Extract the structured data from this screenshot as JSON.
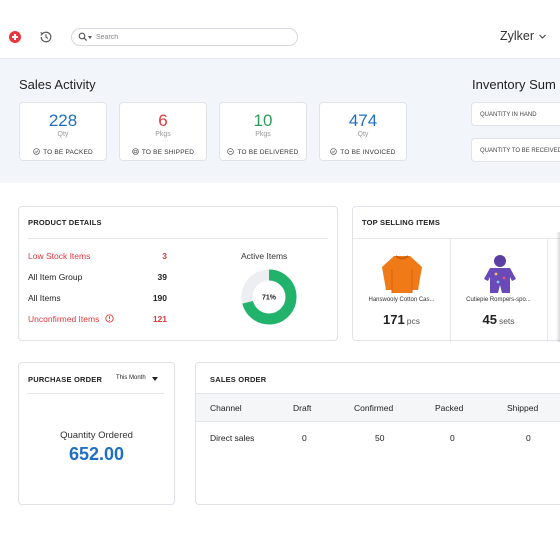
{
  "topbar": {
    "search_placeholder": "Search",
    "org_name": "Zylker"
  },
  "sales_activity": {
    "title": "Sales Activity",
    "cards": [
      {
        "value": "228",
        "unit": "Qty",
        "label": "TO BE PACKED",
        "color": "#1f6fc5",
        "icon": "check-circle-icon"
      },
      {
        "value": "6",
        "unit": "Pkgs",
        "label": "TO BE SHIPPED",
        "color": "#e0393e",
        "icon": "truck-circle-icon"
      },
      {
        "value": "10",
        "unit": "Pkgs",
        "label": "TO BE DELIVERED",
        "color": "#2a9d5c",
        "icon": "minus-circle-icon"
      },
      {
        "value": "474",
        "unit": "Qty",
        "label": "TO BE INVOICED",
        "color": "#1f6fc5",
        "icon": "check-circle-icon"
      }
    ]
  },
  "inventory_summary": {
    "title": "Inventory Sum",
    "rows": [
      "QUANTITY IN HAND",
      "QUANTITY TO BE RECEIVED"
    ]
  },
  "product_details": {
    "title": "PRODUCT DETAILS",
    "rows": [
      {
        "label": "Low Stock Items",
        "value": "3",
        "alert": true
      },
      {
        "label": "All Item Group",
        "value": "39",
        "alert": false
      },
      {
        "label": "All Items",
        "value": "190",
        "alert": false
      },
      {
        "label": "Unconfirmed Items",
        "value": "121",
        "alert": true
      }
    ],
    "active_items": {
      "title": "Active Items",
      "percent_label": "71%",
      "fraction": 0.71,
      "color": "#21b36c"
    }
  },
  "top_selling": {
    "title": "TOP SELLING ITEMS",
    "items": [
      {
        "name": "Hanswooly Cotton Cas...",
        "qty": "171",
        "unit": "pcs",
        "icon": "orange-sweater-icon"
      },
      {
        "name": "Cutiepie Rompers-spo...",
        "qty": "45",
        "unit": "sets",
        "icon": "purple-romper-icon"
      }
    ]
  },
  "purchase_order": {
    "title": "PURCHASE ORDER",
    "period": "This Month",
    "label": "Quantity Ordered",
    "value": "652.00"
  },
  "sales_order": {
    "title": "SALES ORDER",
    "columns": [
      "Channel",
      "Draft",
      "Confirmed",
      "Packed",
      "Shipped"
    ],
    "rows": [
      {
        "channel": "Direct sales",
        "draft": "0",
        "confirmed": "50",
        "packed": "0",
        "shipped": "0"
      }
    ]
  }
}
